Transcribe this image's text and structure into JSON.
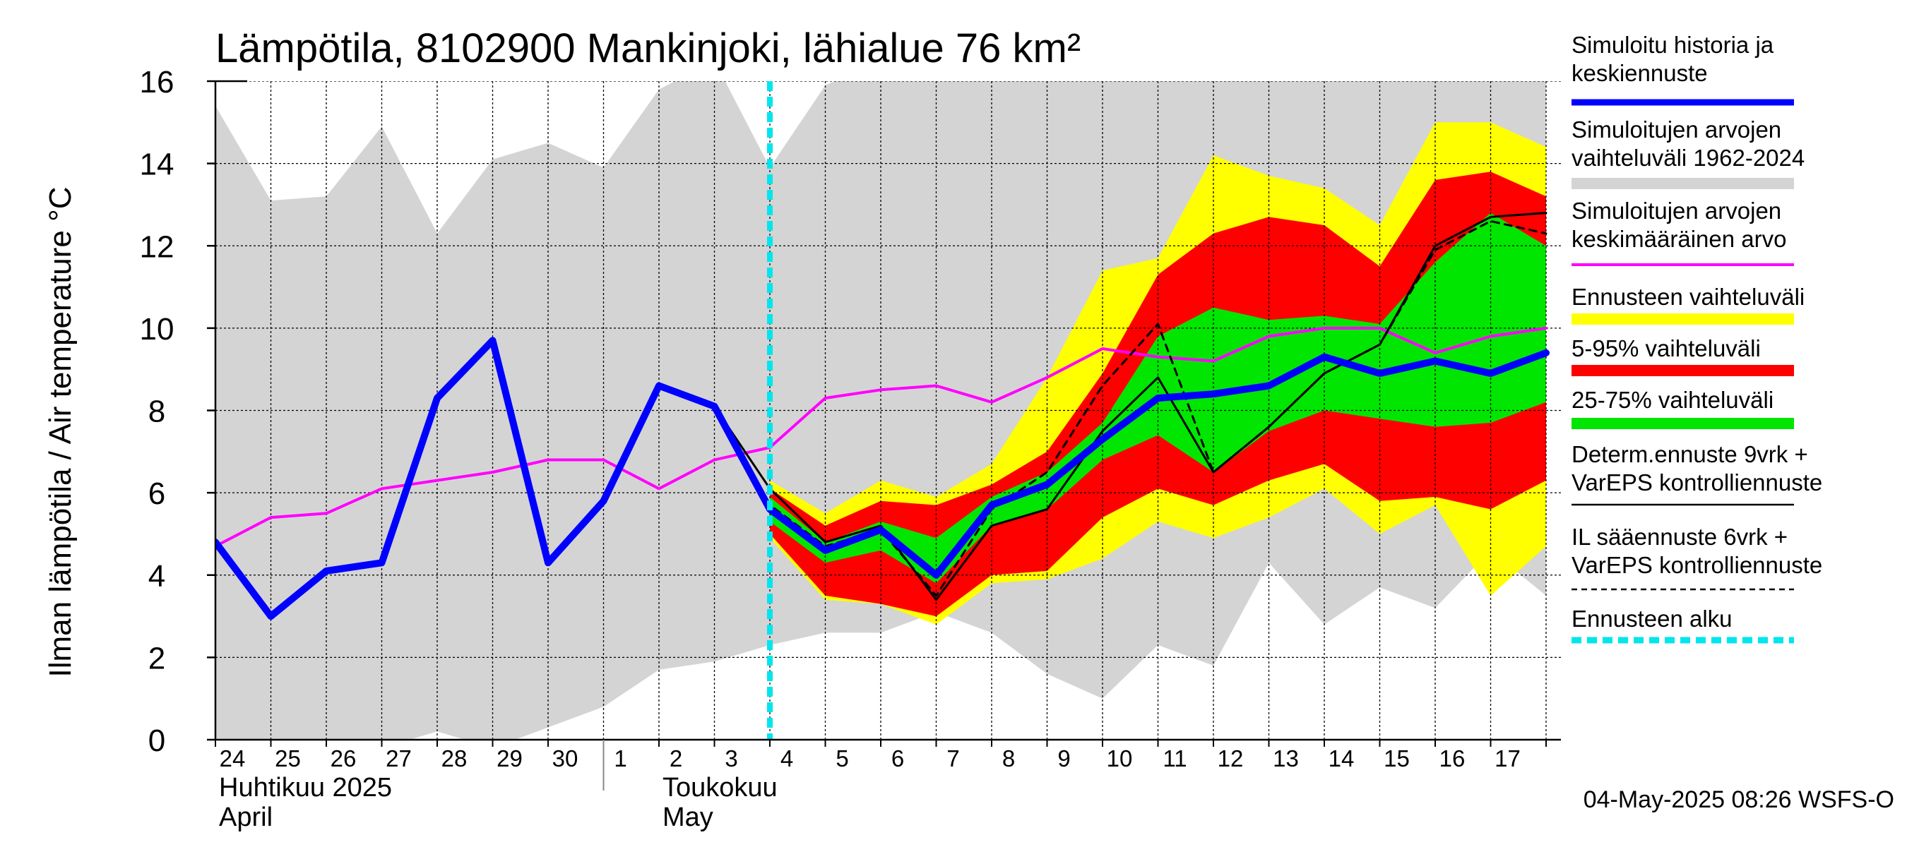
{
  "chart_data": {
    "type": "line",
    "title": "Lämpötila, 8102900 Mankinjoki, lähialue 76 km²",
    "ylabel": "Ilman lämpötila / Air temperature    °C",
    "ylim": [
      0,
      16
    ],
    "yticks": [
      0,
      2,
      4,
      6,
      8,
      10,
      12,
      14,
      16
    ],
    "x_tick_labels": [
      "24",
      "25",
      "26",
      "27",
      "28",
      "29",
      "30",
      "1",
      "2",
      "3",
      "4",
      "5",
      "6",
      "7",
      "8",
      "9",
      "10",
      "11",
      "12",
      "13",
      "14",
      "15",
      "16",
      "17"
    ],
    "months": [
      {
        "line1": "Huhtikuu  2025",
        "line2": "April",
        "start_index": 0
      },
      {
        "line1": "Toukokuu",
        "line2": "May",
        "start_index": 8
      }
    ],
    "month_separator_index": 7,
    "forecast_start_index": 10,
    "footer": "04-May-2025 08:26 WSFS-O",
    "series": {
      "historical_range": {
        "name": "Simuloitujen arvojen vaihteluväli 1962-2024",
        "color": "#d4d4d4",
        "x": [
          0,
          1,
          2,
          3,
          4,
          5,
          6,
          7,
          8,
          9,
          10,
          11,
          12,
          13,
          14,
          15,
          16,
          17,
          18,
          19,
          20,
          21,
          22,
          23,
          24
        ],
        "upper": [
          15.4,
          13.1,
          13.2,
          14.9,
          12.3,
          14.1,
          14.5,
          13.9,
          15.8,
          16.5,
          13.9,
          15.9,
          16.5,
          16.5,
          16.5,
          16.5,
          16.5,
          16.5,
          16.5,
          16.5,
          16.5,
          16.5,
          16.5,
          16.5,
          16.5
        ],
        "lower": [
          -0.2,
          -0.2,
          -0.2,
          -0.2,
          0.2,
          -0.2,
          0.3,
          0.8,
          1.7,
          1.9,
          2.3,
          2.6,
          2.6,
          3.1,
          2.6,
          1.6,
          1.0,
          2.3,
          1.8,
          4.3,
          2.8,
          3.7,
          3.2,
          4.6,
          3.5
        ]
      },
      "ensemble_range": {
        "name": "Ennusteen vaihteluväli",
        "color": "#ffff00",
        "x": [
          10,
          11,
          12,
          13,
          14,
          15,
          16,
          17,
          18,
          19,
          20,
          21,
          22,
          23,
          24
        ],
        "upper": [
          6.3,
          5.5,
          6.3,
          5.9,
          6.7,
          8.8,
          11.4,
          11.7,
          14.2,
          13.7,
          13.4,
          12.5,
          15.0,
          15.0,
          14.4
        ],
        "lower": [
          4.9,
          3.4,
          3.3,
          2.8,
          3.8,
          3.9,
          4.4,
          5.3,
          4.9,
          5.4,
          6.1,
          5.0,
          5.7,
          3.5,
          4.7
        ]
      },
      "range_5_95": {
        "name": "5-95% vaihteluväli",
        "color": "#ff0000",
        "x": [
          10,
          11,
          12,
          13,
          14,
          15,
          16,
          17,
          18,
          19,
          20,
          21,
          22,
          23,
          24
        ],
        "upper": [
          6.1,
          5.2,
          5.8,
          5.7,
          6.2,
          7.0,
          8.9,
          11.3,
          12.3,
          12.7,
          12.5,
          11.5,
          13.6,
          13.8,
          13.2
        ],
        "lower": [
          5.0,
          3.5,
          3.3,
          3.0,
          4.0,
          4.1,
          5.4,
          6.1,
          5.7,
          6.3,
          6.7,
          5.8,
          5.9,
          5.6,
          6.3
        ]
      },
      "range_25_75": {
        "name": "25-75% vaihteluväli",
        "color": "#00e600",
        "x": [
          10,
          11,
          12,
          13,
          14,
          15,
          16,
          17,
          18,
          19,
          20,
          21,
          22,
          23,
          24
        ],
        "upper": [
          5.9,
          4.8,
          5.3,
          4.9,
          5.9,
          6.5,
          7.7,
          9.8,
          10.5,
          10.2,
          10.3,
          10.1,
          11.6,
          12.8,
          12.0
        ],
        "lower": [
          5.3,
          4.3,
          4.6,
          3.8,
          5.2,
          5.6,
          6.8,
          7.4,
          6.5,
          7.5,
          8.0,
          7.8,
          7.6,
          7.7,
          8.2
        ]
      },
      "mean": {
        "name": "Simuloitujen arvojen keskimääräinen arvo",
        "color": "#ff00ff",
        "x": [
          0,
          1,
          2,
          3,
          4,
          5,
          6,
          7,
          8,
          9,
          10,
          11,
          12,
          13,
          14,
          15,
          16,
          17,
          18,
          19,
          20,
          21,
          22,
          23,
          24
        ],
        "values": [
          4.7,
          5.4,
          5.5,
          6.1,
          6.3,
          6.5,
          6.8,
          6.8,
          6.1,
          6.8,
          7.1,
          8.3,
          8.5,
          8.6,
          8.2,
          8.8,
          9.5,
          9.3,
          9.2,
          9.8,
          10.0,
          10.0,
          9.4,
          9.8,
          10.0
        ]
      },
      "determ": {
        "name": "Determ.ennuste 9vrk + VarEPS kontrolliennuste",
        "color": "#000000",
        "x": [
          8,
          9,
          10,
          11,
          12,
          13,
          14,
          15,
          16,
          17,
          18,
          19,
          20,
          21,
          22,
          23,
          24
        ],
        "values": [
          8.6,
          8.1,
          6.1,
          4.8,
          5.2,
          3.4,
          5.2,
          5.6,
          7.5,
          8.8,
          6.5,
          7.6,
          8.9,
          9.6,
          12.0,
          12.7,
          12.8
        ]
      },
      "il": {
        "name": "IL sääennuste 6vrk + VarEPS kontrolliennuste",
        "color": "#000000",
        "x": [
          8,
          9,
          10,
          11,
          12,
          13,
          14,
          15,
          16,
          17,
          18,
          19,
          20,
          21,
          22,
          23,
          24
        ],
        "values": [
          8.6,
          8.1,
          5.7,
          4.7,
          5.1,
          3.5,
          5.6,
          6.5,
          8.6,
          10.1,
          6.5,
          7.6,
          8.9,
          9.6,
          11.9,
          12.6,
          12.3
        ]
      },
      "main": {
        "name": "Simuloitu historia ja keskiennuste",
        "color": "#0000ff",
        "x": [
          0,
          1,
          2,
          3,
          4,
          5,
          6,
          7,
          8,
          9,
          10,
          11,
          12,
          13,
          14,
          15,
          16,
          17,
          18,
          19,
          20,
          21,
          22,
          23,
          24
        ],
        "values": [
          4.8,
          3.0,
          4.1,
          4.3,
          8.3,
          9.7,
          4.3,
          5.8,
          8.6,
          8.1,
          5.6,
          4.6,
          5.1,
          4.0,
          5.7,
          6.2,
          7.3,
          8.3,
          8.4,
          8.6,
          9.3,
          8.9,
          9.2,
          8.9,
          9.4
        ]
      }
    },
    "legend": [
      {
        "key": "main",
        "lines": [
          "Simuloitu historia ja",
          "keskiennuste"
        ],
        "color": "#0000ff",
        "style": "thick"
      },
      {
        "key": "hist",
        "lines": [
          "Simuloitujen arvojen",
          "vaihteluväli 1962-2024"
        ],
        "color": "#d4d4d4",
        "style": "band"
      },
      {
        "key": "mean",
        "lines": [
          "Simuloitujen arvojen",
          "keskimääräinen arvo"
        ],
        "color": "#ff00ff",
        "style": "thin"
      },
      {
        "key": "ens",
        "lines": [
          "Ennusteen vaihteluväli"
        ],
        "color": "#ffff00",
        "style": "band"
      },
      {
        "key": "r595",
        "lines": [
          "5-95% vaihteluväli"
        ],
        "color": "#ff0000",
        "style": "band"
      },
      {
        "key": "r2575",
        "lines": [
          "25-75% vaihteluväli"
        ],
        "color": "#00e600",
        "style": "band"
      },
      {
        "key": "determ",
        "lines": [
          "Determ.ennuste 9vrk +",
          "VarEPS kontrolliennuste"
        ],
        "color": "#000000",
        "style": "solid"
      },
      {
        "key": "il",
        "lines": [
          "IL sääennuste 6vrk  +",
          "  VarEPS kontrolliennuste"
        ],
        "color": "#000000",
        "style": "dashed"
      },
      {
        "key": "start",
        "lines": [
          "Ennusteen alku"
        ],
        "color": "#00e5ee",
        "style": "cyan-dashed"
      }
    ]
  }
}
